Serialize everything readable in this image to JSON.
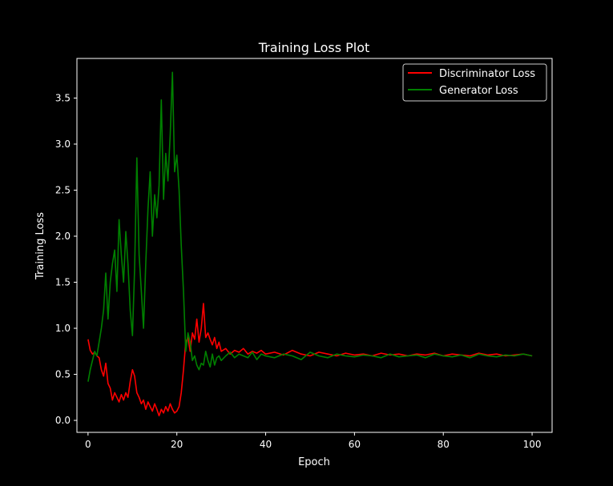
{
  "chart_data": {
    "type": "line",
    "title": "Training Loss Plot",
    "xlabel": "Epoch",
    "ylabel": "Training Loss",
    "xlim": [
      -2.5,
      104.5
    ],
    "ylim": [
      -0.13,
      3.93
    ],
    "xticks": [
      0,
      20,
      40,
      60,
      80,
      100
    ],
    "yticks": [
      0.0,
      0.5,
      1.0,
      1.5,
      2.0,
      2.5,
      3.0,
      3.5
    ],
    "xtick_labels": [
      "0",
      "20",
      "40",
      "60",
      "80",
      "100"
    ],
    "ytick_labels": [
      "0.0",
      "0.5",
      "1.0",
      "1.5",
      "2.0",
      "2.5",
      "3.0",
      "3.5"
    ],
    "grid": false,
    "legend": "top-right",
    "background": "#000000",
    "series": [
      {
        "name": "Discriminator Loss",
        "color": "#ff0000",
        "x": [
          0,
          0.5,
          1,
          1.5,
          2,
          2.5,
          3,
          3.5,
          4,
          4.5,
          5,
          5.5,
          6,
          6.5,
          7,
          7.5,
          8,
          8.5,
          9,
          9.5,
          10,
          10.5,
          11,
          11.5,
          12,
          12.5,
          13,
          13.5,
          14,
          14.5,
          15,
          15.5,
          16,
          16.5,
          17,
          17.5,
          18,
          18.5,
          19,
          19.5,
          20,
          20.5,
          21,
          21.5,
          22,
          22.5,
          23,
          23.5,
          24,
          24.5,
          25,
          25.5,
          26,
          26.5,
          27,
          27.5,
          28,
          28.5,
          29,
          29.5,
          30,
          31,
          32,
          33,
          34,
          35,
          36,
          37,
          38,
          39,
          40,
          42,
          44,
          46,
          48,
          50,
          52,
          54,
          56,
          58,
          60,
          62,
          64,
          66,
          68,
          70,
          72,
          74,
          76,
          78,
          80,
          82,
          84,
          86,
          88,
          90,
          92,
          94,
          96,
          98,
          100
        ],
        "y": [
          0.88,
          0.76,
          0.72,
          0.74,
          0.7,
          0.68,
          0.55,
          0.48,
          0.62,
          0.4,
          0.35,
          0.22,
          0.3,
          0.25,
          0.2,
          0.28,
          0.22,
          0.3,
          0.25,
          0.42,
          0.55,
          0.48,
          0.3,
          0.25,
          0.18,
          0.22,
          0.12,
          0.2,
          0.15,
          0.1,
          0.18,
          0.12,
          0.05,
          0.12,
          0.08,
          0.15,
          0.1,
          0.18,
          0.12,
          0.08,
          0.1,
          0.15,
          0.3,
          0.55,
          0.85,
          0.9,
          0.75,
          0.95,
          0.88,
          1.1,
          0.85,
          1.0,
          1.27,
          0.9,
          0.95,
          0.88,
          0.82,
          0.9,
          0.78,
          0.85,
          0.75,
          0.78,
          0.72,
          0.76,
          0.74,
          0.78,
          0.72,
          0.75,
          0.73,
          0.76,
          0.72,
          0.74,
          0.71,
          0.76,
          0.72,
          0.7,
          0.74,
          0.72,
          0.7,
          0.73,
          0.71,
          0.72,
          0.7,
          0.73,
          0.71,
          0.72,
          0.7,
          0.72,
          0.71,
          0.73,
          0.7,
          0.72,
          0.71,
          0.7,
          0.73,
          0.71,
          0.72,
          0.7,
          0.71,
          0.72,
          0.7
        ]
      },
      {
        "name": "Generator Loss",
        "color": "#008000",
        "x": [
          0,
          0.5,
          1,
          1.5,
          2,
          2.5,
          3,
          3.5,
          4,
          4.5,
          5,
          5.5,
          6,
          6.5,
          7,
          7.5,
          8,
          8.5,
          9,
          9.5,
          10,
          10.5,
          11,
          11.5,
          12,
          12.5,
          13,
          13.5,
          14,
          14.5,
          15,
          15.5,
          16,
          16.5,
          17,
          17.5,
          18,
          18.5,
          19,
          19.5,
          20,
          20.5,
          21,
          21.5,
          22,
          22.5,
          23,
          23.5,
          24,
          24.5,
          25,
          25.5,
          26,
          26.5,
          27,
          27.5,
          28,
          28.5,
          29,
          29.5,
          30,
          31,
          32,
          33,
          34,
          35,
          36,
          37,
          38,
          39,
          40,
          42,
          44,
          46,
          48,
          50,
          52,
          54,
          56,
          58,
          60,
          62,
          64,
          66,
          68,
          70,
          72,
          74,
          76,
          78,
          80,
          82,
          84,
          86,
          88,
          90,
          92,
          94,
          96,
          98,
          100
        ],
        "y": [
          0.42,
          0.55,
          0.65,
          0.75,
          0.7,
          0.85,
          1.0,
          1.2,
          1.6,
          1.1,
          1.5,
          1.7,
          1.85,
          1.4,
          2.18,
          1.8,
          1.5,
          2.05,
          1.7,
          1.2,
          0.92,
          1.65,
          2.85,
          1.8,
          1.4,
          1.0,
          1.7,
          2.3,
          2.7,
          2.0,
          2.45,
          2.2,
          2.55,
          3.48,
          2.4,
          2.9,
          2.6,
          3.1,
          3.78,
          2.7,
          2.88,
          2.5,
          1.9,
          1.4,
          0.75,
          0.95,
          0.85,
          0.65,
          0.7,
          0.6,
          0.55,
          0.62,
          0.6,
          0.75,
          0.65,
          0.58,
          0.72,
          0.6,
          0.68,
          0.7,
          0.65,
          0.7,
          0.74,
          0.68,
          0.72,
          0.7,
          0.68,
          0.74,
          0.66,
          0.72,
          0.7,
          0.68,
          0.72,
          0.7,
          0.66,
          0.74,
          0.7,
          0.68,
          0.72,
          0.7,
          0.69,
          0.71,
          0.7,
          0.68,
          0.72,
          0.69,
          0.7,
          0.71,
          0.68,
          0.72,
          0.7,
          0.69,
          0.71,
          0.68,
          0.72,
          0.7,
          0.69,
          0.71,
          0.7,
          0.72,
          0.7
        ]
      }
    ]
  }
}
